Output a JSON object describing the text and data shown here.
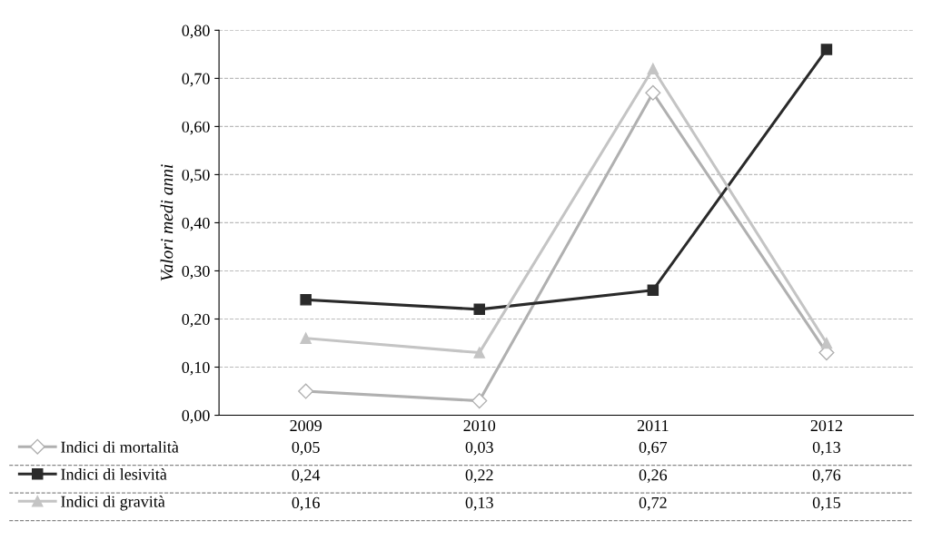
{
  "chart_data": {
    "type": "line",
    "ylabel": "Valori medi anni",
    "categories": [
      "2009",
      "2010",
      "2011",
      "2012"
    ],
    "series": [
      {
        "name": "Indici di mortalità",
        "color": "#b0b0b0",
        "marker": "diamond",
        "values": [
          0.05,
          0.03,
          0.67,
          0.13
        ],
        "value_labels": [
          "0,05",
          "0,03",
          "0,67",
          "0,13"
        ]
      },
      {
        "name": "Indici di lesività",
        "color": "#2a2a2a",
        "marker": "square",
        "values": [
          0.24,
          0.22,
          0.26,
          0.76
        ],
        "value_labels": [
          "0,24",
          "0,22",
          "0,26",
          "0,76"
        ]
      },
      {
        "name": "Indici di gravità",
        "color": "#c4c4c4",
        "marker": "triangle",
        "values": [
          0.16,
          0.13,
          0.72,
          0.15
        ],
        "value_labels": [
          "0,16",
          "0,13",
          "0,72",
          "0,15"
        ]
      }
    ],
    "ylim": [
      0,
      0.8
    ],
    "yticks": [
      {
        "value": 0,
        "label": "0,00"
      },
      {
        "value": 0.1,
        "label": "0,10"
      },
      {
        "value": 0.2,
        "label": "0,20"
      },
      {
        "value": 0.3,
        "label": "0,30"
      },
      {
        "value": 0.4,
        "label": "0,40"
      },
      {
        "value": 0.5,
        "label": "0,50"
      },
      {
        "value": 0.6,
        "label": "0,60"
      },
      {
        "value": 0.7,
        "label": "0,70"
      },
      {
        "value": 0.8,
        "label": "0,80"
      }
    ],
    "grid": "y",
    "legend": "bottom",
    "line_style": "solid"
  }
}
